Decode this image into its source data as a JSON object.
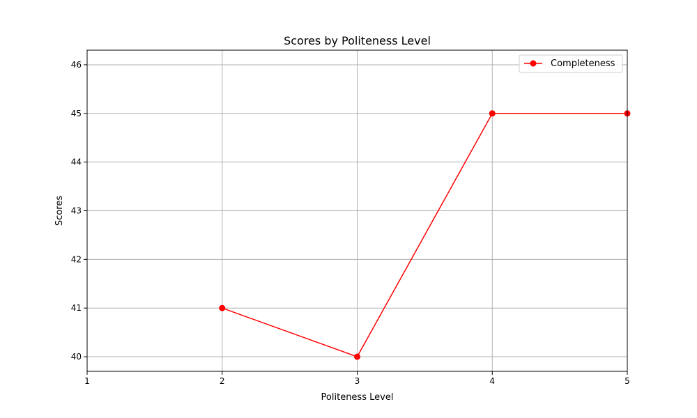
{
  "chart_data": {
    "type": "line",
    "title": "Scores by Politeness Level",
    "xlabel": "Politeness Level",
    "ylabel": "Scores",
    "x": [
      2,
      3,
      4,
      5
    ],
    "series": [
      {
        "name": "Completeness",
        "values": [
          41,
          40,
          45,
          45
        ],
        "color": "#ff0000",
        "marker": "circle"
      }
    ],
    "xlim": [
      1,
      5
    ],
    "ylim": [
      39.7,
      46.3
    ],
    "xticks": [
      1,
      2,
      3,
      4,
      5
    ],
    "yticks": [
      40,
      41,
      42,
      43,
      44,
      45,
      46
    ],
    "grid": true,
    "legend_position": "top-right"
  }
}
